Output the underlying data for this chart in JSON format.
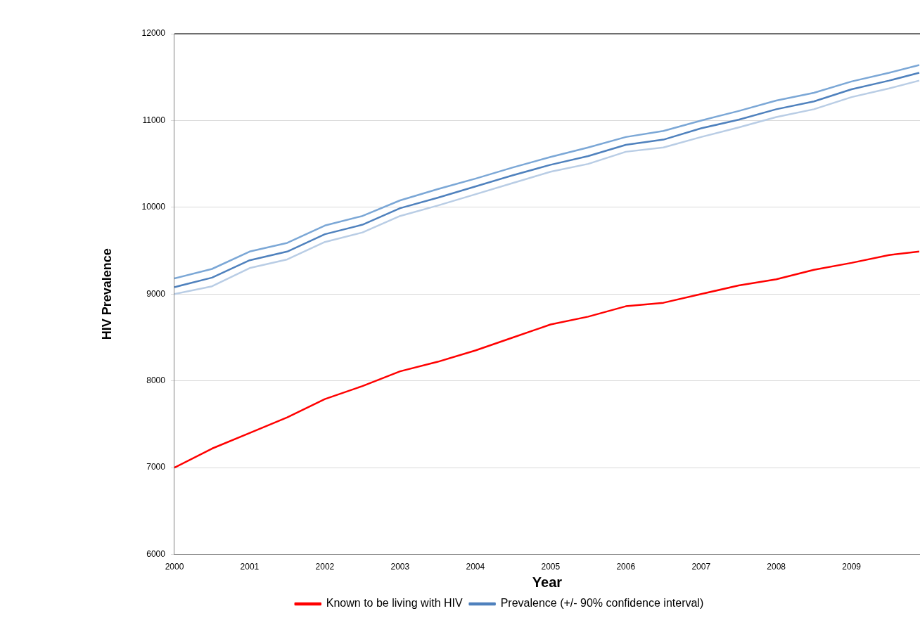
{
  "chart_data": {
    "type": "line",
    "xlabel": "Year",
    "ylabel": "HIV Prevalence",
    "x": [
      2000,
      2000.5,
      2001,
      2001.5,
      2002,
      2002.5,
      2003,
      2003.5,
      2004,
      2004.5,
      2005,
      2005.5,
      2006,
      2006.5,
      2007,
      2007.5,
      2008,
      2008.5,
      2009,
      2009.5,
      2009.9
    ],
    "series": [
      {
        "name": "Known to be living with HIV",
        "color": "#ff0000",
        "values": [
          7000,
          7220,
          7400,
          7580,
          7790,
          7940,
          8110,
          8220,
          8350,
          8500,
          8650,
          8740,
          8860,
          8900,
          9000,
          9100,
          9170,
          9280,
          9360,
          9450,
          9490
        ]
      },
      {
        "name": "Prevalence (+/- 90% confidence interval)",
        "color": "#4f81bd",
        "values": [
          9080,
          9190,
          9390,
          9490,
          9690,
          9800,
          9990,
          10110,
          10240,
          10370,
          10490,
          10590,
          10720,
          10780,
          10910,
          11010,
          11130,
          11220,
          11360,
          11460,
          11550
        ]
      },
      {
        "color": "#7ba7d6",
        "values": [
          9180,
          9290,
          9490,
          9590,
          9790,
          9900,
          10080,
          10210,
          10330,
          10460,
          10580,
          10690,
          10810,
          10880,
          11000,
          11110,
          11230,
          11320,
          11450,
          11550,
          11640
        ]
      },
      {
        "color": "#b9cde5",
        "values": [
          9000,
          9090,
          9300,
          9400,
          9600,
          9710,
          9900,
          10020,
          10150,
          10280,
          10410,
          10500,
          10640,
          10690,
          10810,
          10920,
          11040,
          11130,
          11270,
          11370,
          11460
        ]
      }
    ],
    "xlim": [
      2000,
      2009.91
    ],
    "xticks": [
      2000,
      2001,
      2002,
      2003,
      2004,
      2005,
      2006,
      2007,
      2008,
      2009
    ],
    "ylim": [
      6000,
      12000
    ],
    "yticks": [
      6000,
      7000,
      8000,
      9000,
      10000,
      11000,
      12000
    ],
    "grid": "y",
    "legend": "bottom",
    "marker": "none",
    "line_style": "solid"
  }
}
